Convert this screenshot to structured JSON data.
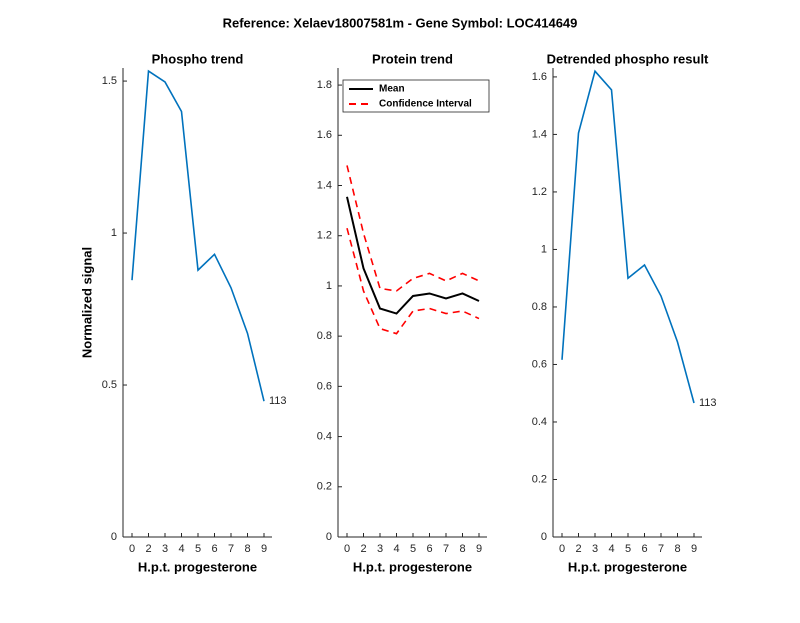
{
  "title": "Reference:  Xelaev18007581m - Gene Symbol:  LOC414649",
  "chart_data": [
    {
      "type": "line",
      "title": "Phospho trend",
      "xlabel": "H.p.t. progesterone",
      "ylabel": "Normalized signal",
      "categories": [
        "0",
        "2",
        "3",
        "4",
        "5",
        "6",
        "7",
        "8",
        "9"
      ],
      "series": [
        {
          "name": "Phospho",
          "color": "#0072bd",
          "values": [
            0.845,
            1.533,
            1.497,
            1.4,
            0.878,
            0.93,
            0.82,
            0.67,
            0.447
          ]
        }
      ],
      "ylim": [
        0,
        1.543
      ],
      "yticks": [
        0,
        0.5,
        1,
        1.5
      ],
      "annotation": "113"
    },
    {
      "type": "band",
      "title": "Protein trend",
      "xlabel": "H.p.t. progesterone",
      "categories": [
        "0",
        "2",
        "3",
        "4",
        "5",
        "6",
        "7",
        "8",
        "9"
      ],
      "series": [
        {
          "name": "Mean",
          "color": "#000000",
          "values": [
            1.355,
            1.07,
            0.91,
            0.89,
            0.96,
            0.97,
            0.95,
            0.97,
            0.94
          ]
        },
        {
          "name": "Confidence Interval",
          "color": "#ff0000",
          "dashed": true,
          "upper": [
            1.48,
            1.21,
            0.99,
            0.98,
            1.03,
            1.05,
            1.02,
            1.05,
            1.02
          ],
          "lower": [
            1.23,
            0.98,
            0.83,
            0.81,
            0.9,
            0.91,
            0.89,
            0.9,
            0.87
          ]
        }
      ],
      "ylim": [
        0,
        1.868
      ],
      "yticks": [
        0,
        0.2,
        0.4,
        0.6,
        0.8,
        1,
        1.2,
        1.4,
        1.6,
        1.8
      ],
      "legend": "upper left"
    },
    {
      "type": "line",
      "title": "Detrended phospho result",
      "xlabel": "H.p.t. progesterone",
      "categories": [
        "0",
        "2",
        "3",
        "4",
        "5",
        "6",
        "7",
        "8",
        "9"
      ],
      "series": [
        {
          "name": "Detrended",
          "color": "#0072bd",
          "values": [
            0.616,
            1.405,
            1.62,
            1.555,
            0.9,
            0.946,
            0.838,
            0.678,
            0.466
          ]
        }
      ],
      "ylim": [
        0,
        1.631
      ],
      "yticks": [
        0,
        0.2,
        0.4,
        0.6,
        0.8,
        1,
        1.2,
        1.4,
        1.6
      ],
      "annotation": "113"
    }
  ]
}
